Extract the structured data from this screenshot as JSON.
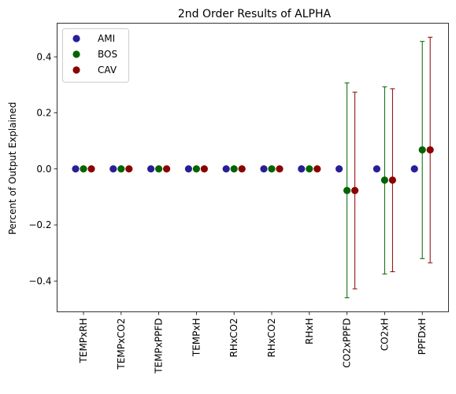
{
  "chart_data": {
    "type": "scatter",
    "title": "2nd Order Results of ALPHA",
    "xlabel": "",
    "ylabel": "Percent of Output Explained",
    "categories": [
      "TEMPxRH",
      "TEMPxCO2",
      "TEMPxPPFD",
      "TEMPxH",
      "RHxCO2",
      "RHxCO2",
      "RHxH",
      "CO2xPPFD",
      "CO2xH",
      "PPFDxH"
    ],
    "ylim": [
      -0.51,
      0.52
    ],
    "yticks": [
      -0.4,
      -0.2,
      0.0,
      0.2,
      0.4
    ],
    "ytick_labels": [
      "−0.4",
      "−0.2",
      "0.0",
      "0.2",
      "0.4"
    ],
    "grid": false,
    "legend_position": "top-left",
    "series": [
      {
        "name": "AMI",
        "color": "#281e96",
        "values": [
          0.0,
          0.0,
          0.0,
          0.0,
          0.0,
          0.0,
          0.0,
          0.0,
          0.0,
          0.0
        ],
        "err_low": null,
        "err_high": null
      },
      {
        "name": "BOS",
        "color": "#006400",
        "values": [
          0.0,
          0.0,
          0.0,
          0.0,
          0.0,
          0.0,
          0.0,
          -0.077,
          -0.04,
          0.068
        ],
        "err_low": [
          0.0,
          0.0,
          0.0,
          0.0,
          0.0,
          0.0,
          0.0,
          -0.46,
          -0.375,
          -0.32
        ],
        "err_high": [
          0.0,
          0.0,
          0.0,
          0.0,
          0.0,
          0.0,
          0.0,
          0.307,
          0.293,
          0.455
        ]
      },
      {
        "name": "CAV",
        "color": "#8b0000",
        "values": [
          0.0,
          0.0,
          0.0,
          0.0,
          0.0,
          0.0,
          0.0,
          -0.077,
          -0.04,
          0.068
        ],
        "err_low": [
          0.0,
          0.0,
          0.0,
          0.0,
          0.0,
          0.0,
          0.0,
          -0.428,
          -0.367,
          -0.335
        ],
        "err_high": [
          0.0,
          0.0,
          0.0,
          0.0,
          0.0,
          0.0,
          0.0,
          0.274,
          0.286,
          0.47
        ]
      }
    ]
  }
}
